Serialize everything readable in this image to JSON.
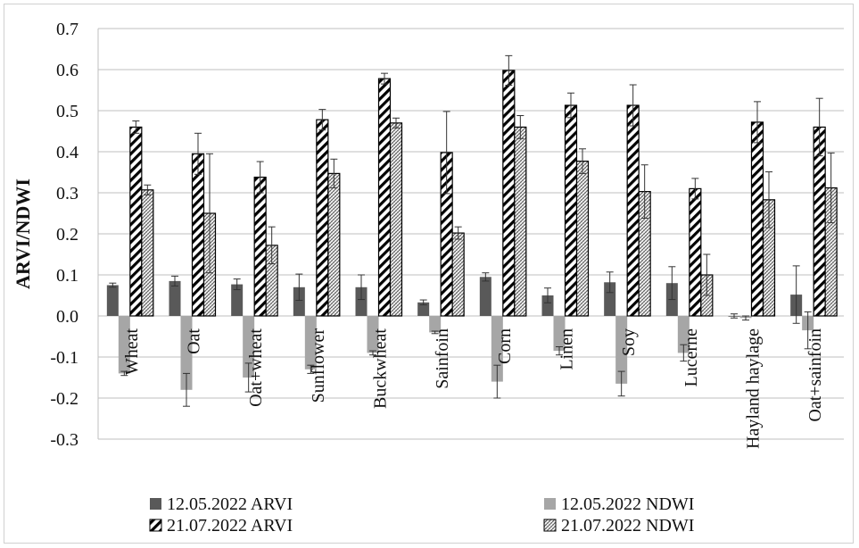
{
  "chart_data": {
    "type": "bar",
    "ylabel": "ARVI/NDWI",
    "xlabel": "",
    "ylim": [
      -0.3,
      0.7
    ],
    "yticks": [
      "0.7",
      "0.6",
      "0.5",
      "0.4",
      "0.3",
      "0.2",
      "0.1",
      "0.0",
      "-0.1",
      "-0.2",
      "-0.3"
    ],
    "grid": true,
    "legend_position": "bottom",
    "categories": [
      "Wheat",
      "Oat",
      "Oat+wheat",
      "Sunflower",
      "Buckwheat",
      "Sainfoin",
      "Corn",
      "Linen",
      "Soy",
      "Lucerne",
      "Hayland haylage",
      "Oat+sainfoin"
    ],
    "series": [
      {
        "name": "12.05.2022 ARVI",
        "color": "#595959",
        "pattern": "solid",
        "values": [
          0.075,
          0.085,
          0.077,
          0.07,
          0.07,
          0.033,
          0.095,
          0.05,
          0.082,
          0.08,
          0.0,
          0.052
        ],
        "errors": [
          0.005,
          0.012,
          0.013,
          0.032,
          0.03,
          0.006,
          0.01,
          0.018,
          0.025,
          0.04,
          0.005,
          0.07
        ]
      },
      {
        "name": "12.05.2022 NDWI",
        "color": "#a6a6a6",
        "pattern": "solid",
        "values": [
          -0.14,
          -0.18,
          -0.15,
          -0.13,
          -0.09,
          -0.04,
          -0.16,
          -0.085,
          -0.165,
          -0.09,
          -0.005,
          -0.035
        ],
        "errors": [
          0.005,
          0.04,
          0.035,
          0.01,
          0.005,
          0.003,
          0.04,
          0.01,
          0.03,
          0.02,
          0.005,
          0.045
        ]
      },
      {
        "name": "21.07.2022 ARVI",
        "color": "#000000",
        "pattern": "diagonal",
        "values": [
          0.46,
          0.395,
          0.338,
          0.478,
          0.578,
          0.398,
          0.598,
          0.513,
          0.513,
          0.31,
          0.472,
          0.46
        ],
        "errors": [
          0.015,
          0.05,
          0.038,
          0.025,
          0.013,
          0.1,
          0.036,
          0.03,
          0.05,
          0.025,
          0.05,
          0.07
        ]
      },
      {
        "name": "21.07.2022 NDWI",
        "color": "#7f7f7f",
        "pattern": "hatch",
        "values": [
          0.307,
          0.25,
          0.172,
          0.347,
          0.47,
          0.202,
          0.46,
          0.377,
          0.303,
          0.1,
          0.283,
          0.312
        ],
        "errors": [
          0.012,
          0.145,
          0.045,
          0.035,
          0.012,
          0.015,
          0.028,
          0.03,
          0.065,
          0.05,
          0.068,
          0.085
        ]
      }
    ]
  }
}
